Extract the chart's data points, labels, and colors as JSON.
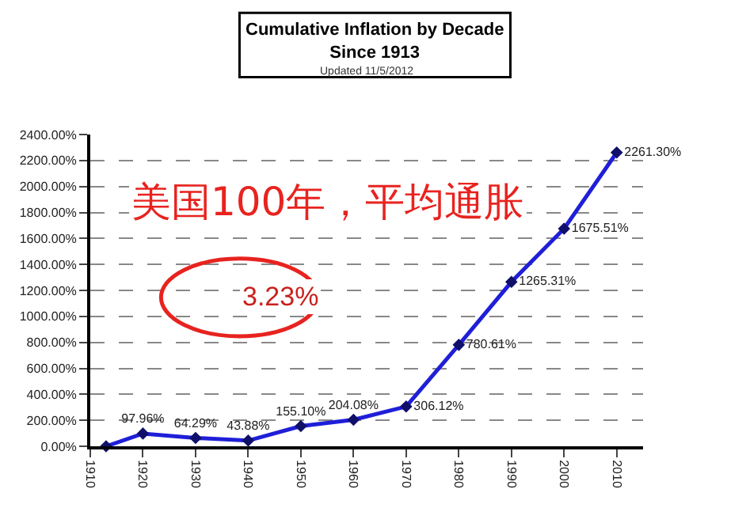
{
  "chart_data": {
    "type": "line",
    "title": "Cumulative Inflation by Decade\nSince 1913",
    "x": [
      1913,
      1920,
      1930,
      1940,
      1950,
      1960,
      1970,
      1980,
      1990,
      2000,
      2010
    ],
    "series": [
      {
        "color": "#1f1fd8",
        "values": [
          0,
          97.96,
          64.29,
          43.88,
          155.1,
          204.08,
          306.12,
          780.61,
          1265.31,
          1675.51,
          2261.3
        ],
        "value_labels": [
          null,
          "97.96%",
          "64.29%",
          "43.88%",
          "155.10%",
          "204.08%",
          "306.12%",
          "780.61%",
          "1265.31%",
          "1675.51%",
          "2261.30%"
        ]
      }
    ],
    "xlim": [
      1910,
      2015
    ],
    "xticks": [
      1910,
      1920,
      1930,
      1940,
      1950,
      1960,
      1970,
      1980,
      1990,
      2000,
      2010
    ],
    "ylim": [
      0,
      2400
    ],
    "yticks": [
      {
        "value": 0,
        "label": "0.00%"
      },
      {
        "value": 200,
        "label": "200.00%"
      },
      {
        "value": 400,
        "label": "400.00%"
      },
      {
        "value": 600,
        "label": "600.00%"
      },
      {
        "value": 800,
        "label": "800.00%"
      },
      {
        "value": 1000,
        "label": "1000.00%"
      },
      {
        "value": 1200,
        "label": "1200.00%"
      },
      {
        "value": 1400,
        "label": "1400.00%"
      },
      {
        "value": 1600,
        "label": "1600.00%"
      },
      {
        "value": 1800,
        "label": "1800.00%"
      },
      {
        "value": 2000,
        "label": "2000.00%"
      },
      {
        "value": 2200,
        "label": "2200.00%"
      },
      {
        "value": 2400,
        "label": "2400.00%"
      }
    ],
    "grid": "y",
    "marker": "diamond",
    "line_style": "solid",
    "legend": false,
    "annotations": [
      "Updated 11/5/2012",
      "美国100年，平均通胀",
      "3.23%"
    ]
  }
}
